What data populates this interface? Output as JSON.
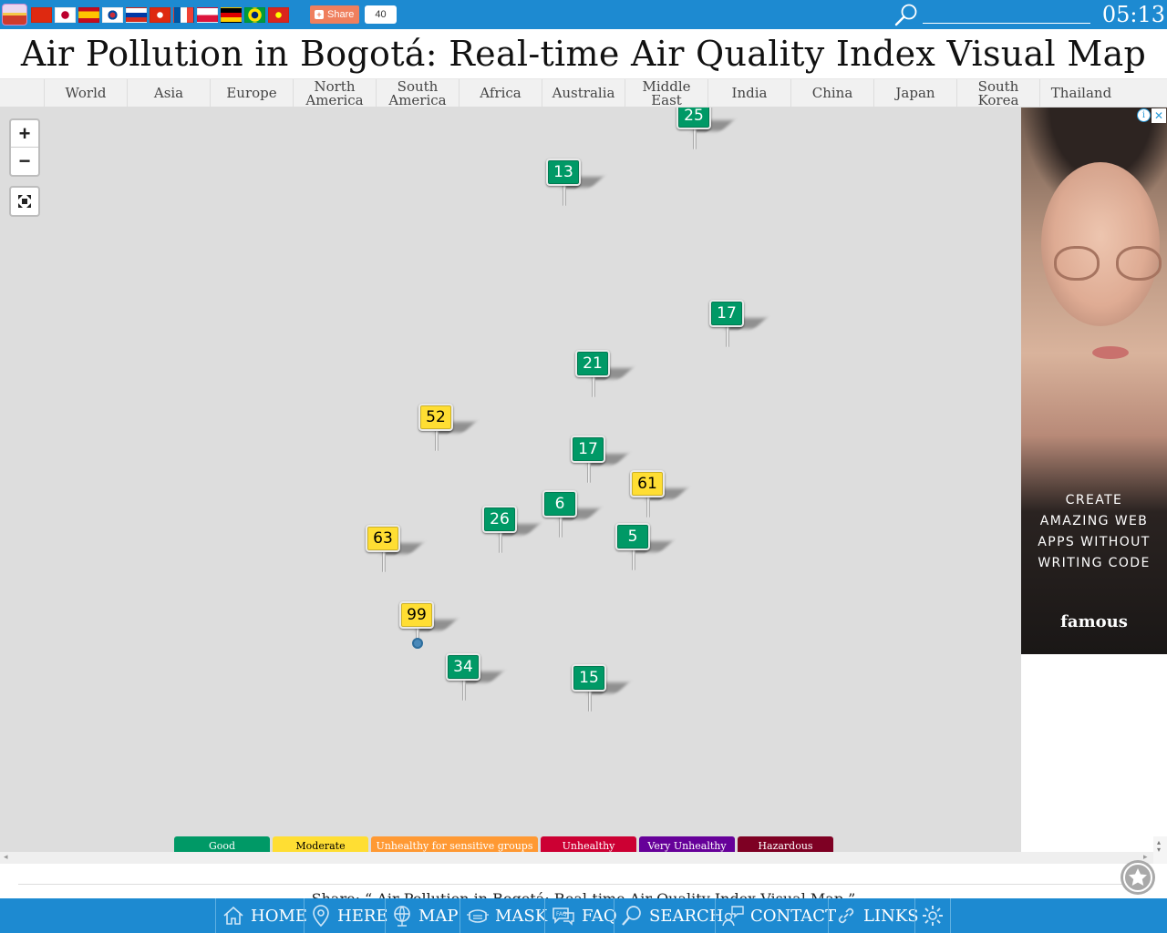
{
  "share": {
    "label": "Share",
    "count": "40"
  },
  "topbar": {
    "time": "05:13",
    "search_placeholder": ""
  },
  "page_title": "Air Pollution in Bogotá: Real-time Air Quality Index Visual Map",
  "regions": [
    "World",
    "Asia",
    "Europe",
    "North America",
    "South America",
    "Africa",
    "Australia",
    "Middle East",
    "India",
    "China",
    "Japan",
    "South Korea",
    "Thailand"
  ],
  "map": {
    "zoom_in": "+",
    "zoom_out": "−",
    "markers": [
      {
        "aqi": "25",
        "level": "good"
      },
      {
        "aqi": "13",
        "level": "good"
      },
      {
        "aqi": "17",
        "level": "good"
      },
      {
        "aqi": "21",
        "level": "good"
      },
      {
        "aqi": "52",
        "level": "moderate"
      },
      {
        "aqi": "17",
        "level": "good"
      },
      {
        "aqi": "61",
        "level": "moderate"
      },
      {
        "aqi": "6",
        "level": "good"
      },
      {
        "aqi": "26",
        "level": "good"
      },
      {
        "aqi": "5",
        "level": "good"
      },
      {
        "aqi": "63",
        "level": "moderate"
      },
      {
        "aqi": "99",
        "level": "moderate"
      },
      {
        "aqi": "34",
        "level": "good"
      },
      {
        "aqi": "15",
        "level": "good"
      }
    ],
    "legend": [
      {
        "label": "Good",
        "color": "#009966"
      },
      {
        "label": "Moderate",
        "color": "#ffde33"
      },
      {
        "label": "Unhealthy for sensitive groups",
        "color": "#ff9933"
      },
      {
        "label": "Unhealthy",
        "color": "#cc0033"
      },
      {
        "label": "Very Unhealthy",
        "color": "#660099"
      },
      {
        "label": "Hazardous",
        "color": "#7e0023"
      }
    ]
  },
  "ad": {
    "text": "CREATE\nAMAZING WEB\nAPPS WITHOUT\nWRITING CODE",
    "brand": "famous",
    "info": "i",
    "close": "✕"
  },
  "share_line": "Share: “ Air Pollution in Bogotá: Real-time Air Quality Index Visual Map ”",
  "bottom_nav": [
    "HOME",
    "HERE",
    "MAP",
    "MASK",
    "FAQ",
    "SEARCH",
    "CONTACT",
    "LINKS"
  ],
  "colors": {
    "topbar": "#1d8ad1",
    "good": "#009966",
    "moderate": "#ffde33"
  }
}
